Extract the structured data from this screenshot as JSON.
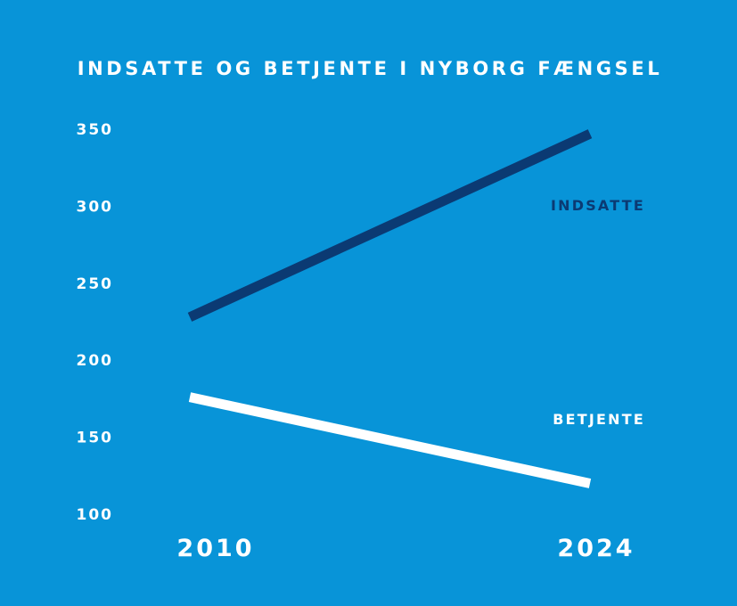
{
  "colors": {
    "background": "#0894D8",
    "indsatte": "#0B3A73",
    "betjente": "#FFFFFF",
    "text": "#FFFFFF"
  },
  "chart_data": {
    "type": "line",
    "title": "INDSATTE OG BETJENTE I NYBORG FÆNGSEL",
    "xlabel": "",
    "ylabel": "",
    "x": [
      "2010",
      "2024"
    ],
    "y_ticks": [
      "350",
      "300",
      "250",
      "200",
      "150",
      "100"
    ],
    "ylim": [
      100,
      350
    ],
    "grid": false,
    "legend": "inline labels at right",
    "series": [
      {
        "name": "INDSATTE",
        "values": [
          228,
          347
        ]
      },
      {
        "name": "BETJENTE",
        "values": [
          176,
          120
        ]
      }
    ]
  }
}
